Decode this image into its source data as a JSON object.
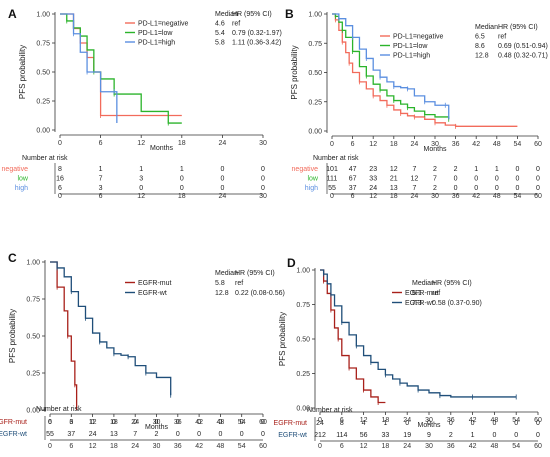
{
  "colors": {
    "negative": "#f26b5b",
    "low": "#2bb42b",
    "high": "#5b8fe0",
    "mut": "#a8201a",
    "wt": "#1f4e79",
    "axis": "#333333"
  },
  "chart_data": [
    {
      "type": "line",
      "panel_label": "A",
      "ylabel": "PFS probability",
      "xlabel": "Months",
      "xlim": [
        0,
        30
      ],
      "ylim": [
        0,
        1
      ],
      "xticks": [
        0,
        6,
        12,
        18,
        24,
        30
      ],
      "yticks": [
        "0.00",
        "0.25",
        "0.50",
        "0.75",
        "1.00"
      ],
      "legend_header": [
        "Median",
        "HR (95% CI)"
      ],
      "series": [
        {
          "name": "PD-L1=negative",
          "median": "4.6",
          "hr": "ref",
          "color": "#f26b5b",
          "x": [
            0,
            2,
            3,
            4,
            5,
            6,
            18
          ],
          "y": [
            1,
            0.875,
            0.75,
            0.625,
            0.5,
            0.125,
            0.125
          ]
        },
        {
          "name": "PD-L1=low",
          "median": "5.4",
          "hr": "0.79 (0.32-1.97)",
          "color": "#2bb42b",
          "x": [
            0,
            1,
            2,
            3,
            4,
            5,
            6,
            8,
            12,
            16,
            18
          ],
          "y": [
            1,
            0.94,
            0.88,
            0.81,
            0.69,
            0.5,
            0.44,
            0.31,
            0.16,
            0.06,
            0.06
          ]
        },
        {
          "name": "PD-L1=high",
          "median": "5.8",
          "hr": "1.11 (0.36-3.42)",
          "color": "#5b8fe0",
          "x": [
            0,
            2,
            3,
            4,
            6,
            8,
            8.4
          ],
          "y": [
            1,
            0.83,
            0.67,
            0.5,
            0.33,
            0.33,
            0.06
          ]
        }
      ],
      "risk_table": {
        "title": "Number at risk",
        "rows": [
          {
            "label": "negative",
            "color": "#f26b5b",
            "values": [
              "8",
              "1",
              "1",
              "1",
              "0",
              "0"
            ]
          },
          {
            "label": "low",
            "color": "#2bb42b",
            "values": [
              "16",
              "7",
              "3",
              "0",
              "0",
              "0"
            ]
          },
          {
            "label": "high",
            "color": "#5b8fe0",
            "values": [
              "6",
              "3",
              "0",
              "0",
              "0",
              "0"
            ]
          }
        ],
        "xticks": [
          0,
          6,
          12,
          18,
          24,
          30
        ]
      }
    },
    {
      "type": "line",
      "panel_label": "B",
      "ylabel": "PFS probability",
      "xlabel": "Months",
      "xlim": [
        0,
        60
      ],
      "ylim": [
        0,
        1
      ],
      "xticks": [
        0,
        6,
        12,
        18,
        24,
        30,
        36,
        42,
        48,
        54,
        60
      ],
      "yticks": [
        "0.00",
        "0.25",
        "0.50",
        "0.75",
        "1.00"
      ],
      "legend_header": [
        "Median",
        "HR (95% CI)"
      ],
      "series": [
        {
          "name": "PD-L1=negative",
          "median": "6.5",
          "hr": "ref",
          "color": "#f26b5b",
          "x": [
            0,
            1,
            2,
            3,
            4,
            5,
            6,
            8,
            10,
            12,
            14,
            16,
            18,
            20,
            22,
            24,
            27,
            30,
            33,
            36,
            54
          ],
          "y": [
            1,
            0.95,
            0.86,
            0.76,
            0.67,
            0.58,
            0.5,
            0.42,
            0.36,
            0.3,
            0.26,
            0.22,
            0.18,
            0.15,
            0.13,
            0.12,
            0.1,
            0.07,
            0.05,
            0.04,
            0.04
          ]
        },
        {
          "name": "PD-L1=low",
          "median": "8.6",
          "hr": "0.69 (0.51-0.94)",
          "color": "#2bb42b",
          "x": [
            0,
            1,
            2,
            3,
            4,
            6,
            8,
            10,
            12,
            14,
            16,
            18,
            20,
            22,
            24,
            27,
            30,
            34
          ],
          "y": [
            1,
            0.98,
            0.93,
            0.86,
            0.8,
            0.68,
            0.55,
            0.47,
            0.4,
            0.35,
            0.3,
            0.26,
            0.23,
            0.2,
            0.17,
            0.14,
            0.12,
            0.1
          ]
        },
        {
          "name": "PD-L1=high",
          "median": "12.8",
          "hr": "0.48 (0.32-0.71)",
          "color": "#5b8fe0",
          "x": [
            0,
            2,
            4,
            6,
            8,
            10,
            12,
            14,
            16,
            18,
            20,
            22,
            24,
            27,
            30,
            33,
            34
          ],
          "y": [
            1,
            0.96,
            0.9,
            0.8,
            0.7,
            0.62,
            0.52,
            0.46,
            0.42,
            0.38,
            0.37,
            0.36,
            0.3,
            0.25,
            0.22,
            0.22,
            0.1
          ]
        }
      ],
      "risk_table": {
        "title": "Number at risk",
        "rows": [
          {
            "label": "negative",
            "color": "#f26b5b",
            "values": [
              "101",
              "47",
              "23",
              "12",
              "7",
              "2",
              "2",
              "1",
              "1",
              "0",
              "0"
            ]
          },
          {
            "label": "low",
            "color": "#2bb42b",
            "values": [
              "111",
              "67",
              "33",
              "21",
              "12",
              "7",
              "0",
              "0",
              "0",
              "0",
              "0"
            ]
          },
          {
            "label": "high",
            "color": "#5b8fe0",
            "values": [
              "55",
              "37",
              "24",
              "13",
              "7",
              "2",
              "0",
              "0",
              "0",
              "0",
              "0"
            ]
          }
        ],
        "xticks": [
          0,
          6,
          12,
          18,
          24,
          30,
          36,
          42,
          48,
          54,
          60
        ]
      }
    },
    {
      "type": "line",
      "panel_label": "C",
      "ylabel": "PFS probability",
      "xlabel": "Months",
      "xlim": [
        0,
        60
      ],
      "ylim": [
        0,
        1
      ],
      "xticks": [
        0,
        6,
        12,
        18,
        24,
        30,
        36,
        42,
        48,
        54,
        60
      ],
      "yticks": [
        "0.00",
        "0.25",
        "0.50",
        "0.75",
        "1.00"
      ],
      "legend_header": [
        "Median",
        "HR (95% CI)"
      ],
      "series": [
        {
          "name": "EGFR-mut",
          "median": "5.8",
          "hr": "ref",
          "color": "#a8201a",
          "x": [
            0,
            2,
            4,
            5,
            6,
            7,
            7.5
          ],
          "y": [
            1,
            0.83,
            0.67,
            0.5,
            0.33,
            0.17,
            0
          ]
        },
        {
          "name": "EGFR-wt",
          "median": "12.8",
          "hr": "0.22 (0.08-0.56)",
          "color": "#1f4e79",
          "x": [
            0,
            2,
            4,
            6,
            8,
            10,
            12,
            14,
            16,
            18,
            20,
            22,
            24,
            27,
            30,
            34
          ],
          "y": [
            1,
            0.96,
            0.9,
            0.8,
            0.7,
            0.62,
            0.52,
            0.46,
            0.42,
            0.38,
            0.37,
            0.36,
            0.3,
            0.25,
            0.22,
            0.1
          ]
        }
      ],
      "risk_table": {
        "title": "Number at risk",
        "rows": [
          {
            "label": "EGFR-mut",
            "color": "#a8201a",
            "values": [
              "6",
              "3",
              "0",
              "0",
              "0",
              "0",
              "0",
              "0",
              "0",
              "0",
              "0"
            ]
          },
          {
            "label": "EGFR-wt",
            "color": "#1f4e79",
            "values": [
              "55",
              "37",
              "24",
              "13",
              "7",
              "2",
              "0",
              "0",
              "0",
              "0",
              "0"
            ]
          }
        ],
        "xticks": [
          0,
          6,
          12,
          18,
          24,
          30,
          36,
          42,
          48,
          54,
          60
        ]
      }
    },
    {
      "type": "line",
      "panel_label": "D",
      "ylabel": "PFS probability",
      "xlabel": "Months",
      "xlim": [
        0,
        60
      ],
      "ylim": [
        0,
        1
      ],
      "xticks": [
        0,
        6,
        12,
        18,
        24,
        30,
        36,
        42,
        48,
        54,
        60
      ],
      "yticks": [
        "0.00",
        "0.25",
        "0.50",
        "0.75",
        "1.00"
      ],
      "legend_header": [
        "Median",
        "HR (95% CI)"
      ],
      "series": [
        {
          "name": "EGFR-mut",
          "median": "5.1",
          "hr": "ref",
          "color": "#a8201a",
          "x": [
            0,
            1,
            2,
            3,
            4,
            5,
            6,
            8,
            10,
            12,
            14,
            16,
            18
          ],
          "y": [
            1,
            0.92,
            0.83,
            0.71,
            0.58,
            0.5,
            0.38,
            0.29,
            0.21,
            0.13,
            0.08,
            0.04,
            0.04
          ]
        },
        {
          "name": "EGFR-wt",
          "median": "7.3",
          "hr": "0.58 (0.37-0.90)",
          "color": "#1f4e79",
          "x": [
            0,
            1,
            2,
            3,
            4,
            6,
            8,
            10,
            12,
            14,
            16,
            18,
            20,
            22,
            24,
            27,
            30,
            33,
            36,
            42,
            48,
            54
          ],
          "y": [
            1,
            0.97,
            0.9,
            0.82,
            0.74,
            0.62,
            0.53,
            0.45,
            0.38,
            0.33,
            0.28,
            0.24,
            0.21,
            0.18,
            0.16,
            0.13,
            0.11,
            0.09,
            0.08,
            0.08,
            0.08,
            0.08
          ]
        }
      ],
      "risk_table": {
        "title": "Number at risk",
        "rows": [
          {
            "label": "EGFR-mut",
            "color": "#a8201a",
            "values": [
              "24",
              "8",
              "4",
              "1",
              "0",
              "0",
              "0",
              "0",
              "0",
              "0",
              "0"
            ]
          },
          {
            "label": "EGFR-wt",
            "color": "#1f4e79",
            "values": [
              "212",
              "114",
              "56",
              "33",
              "19",
              "9",
              "2",
              "1",
              "0",
              "0",
              "0"
            ]
          }
        ],
        "xticks": [
          0,
          6,
          12,
          18,
          24,
          30,
          36,
          42,
          48,
          54,
          60
        ]
      }
    }
  ]
}
